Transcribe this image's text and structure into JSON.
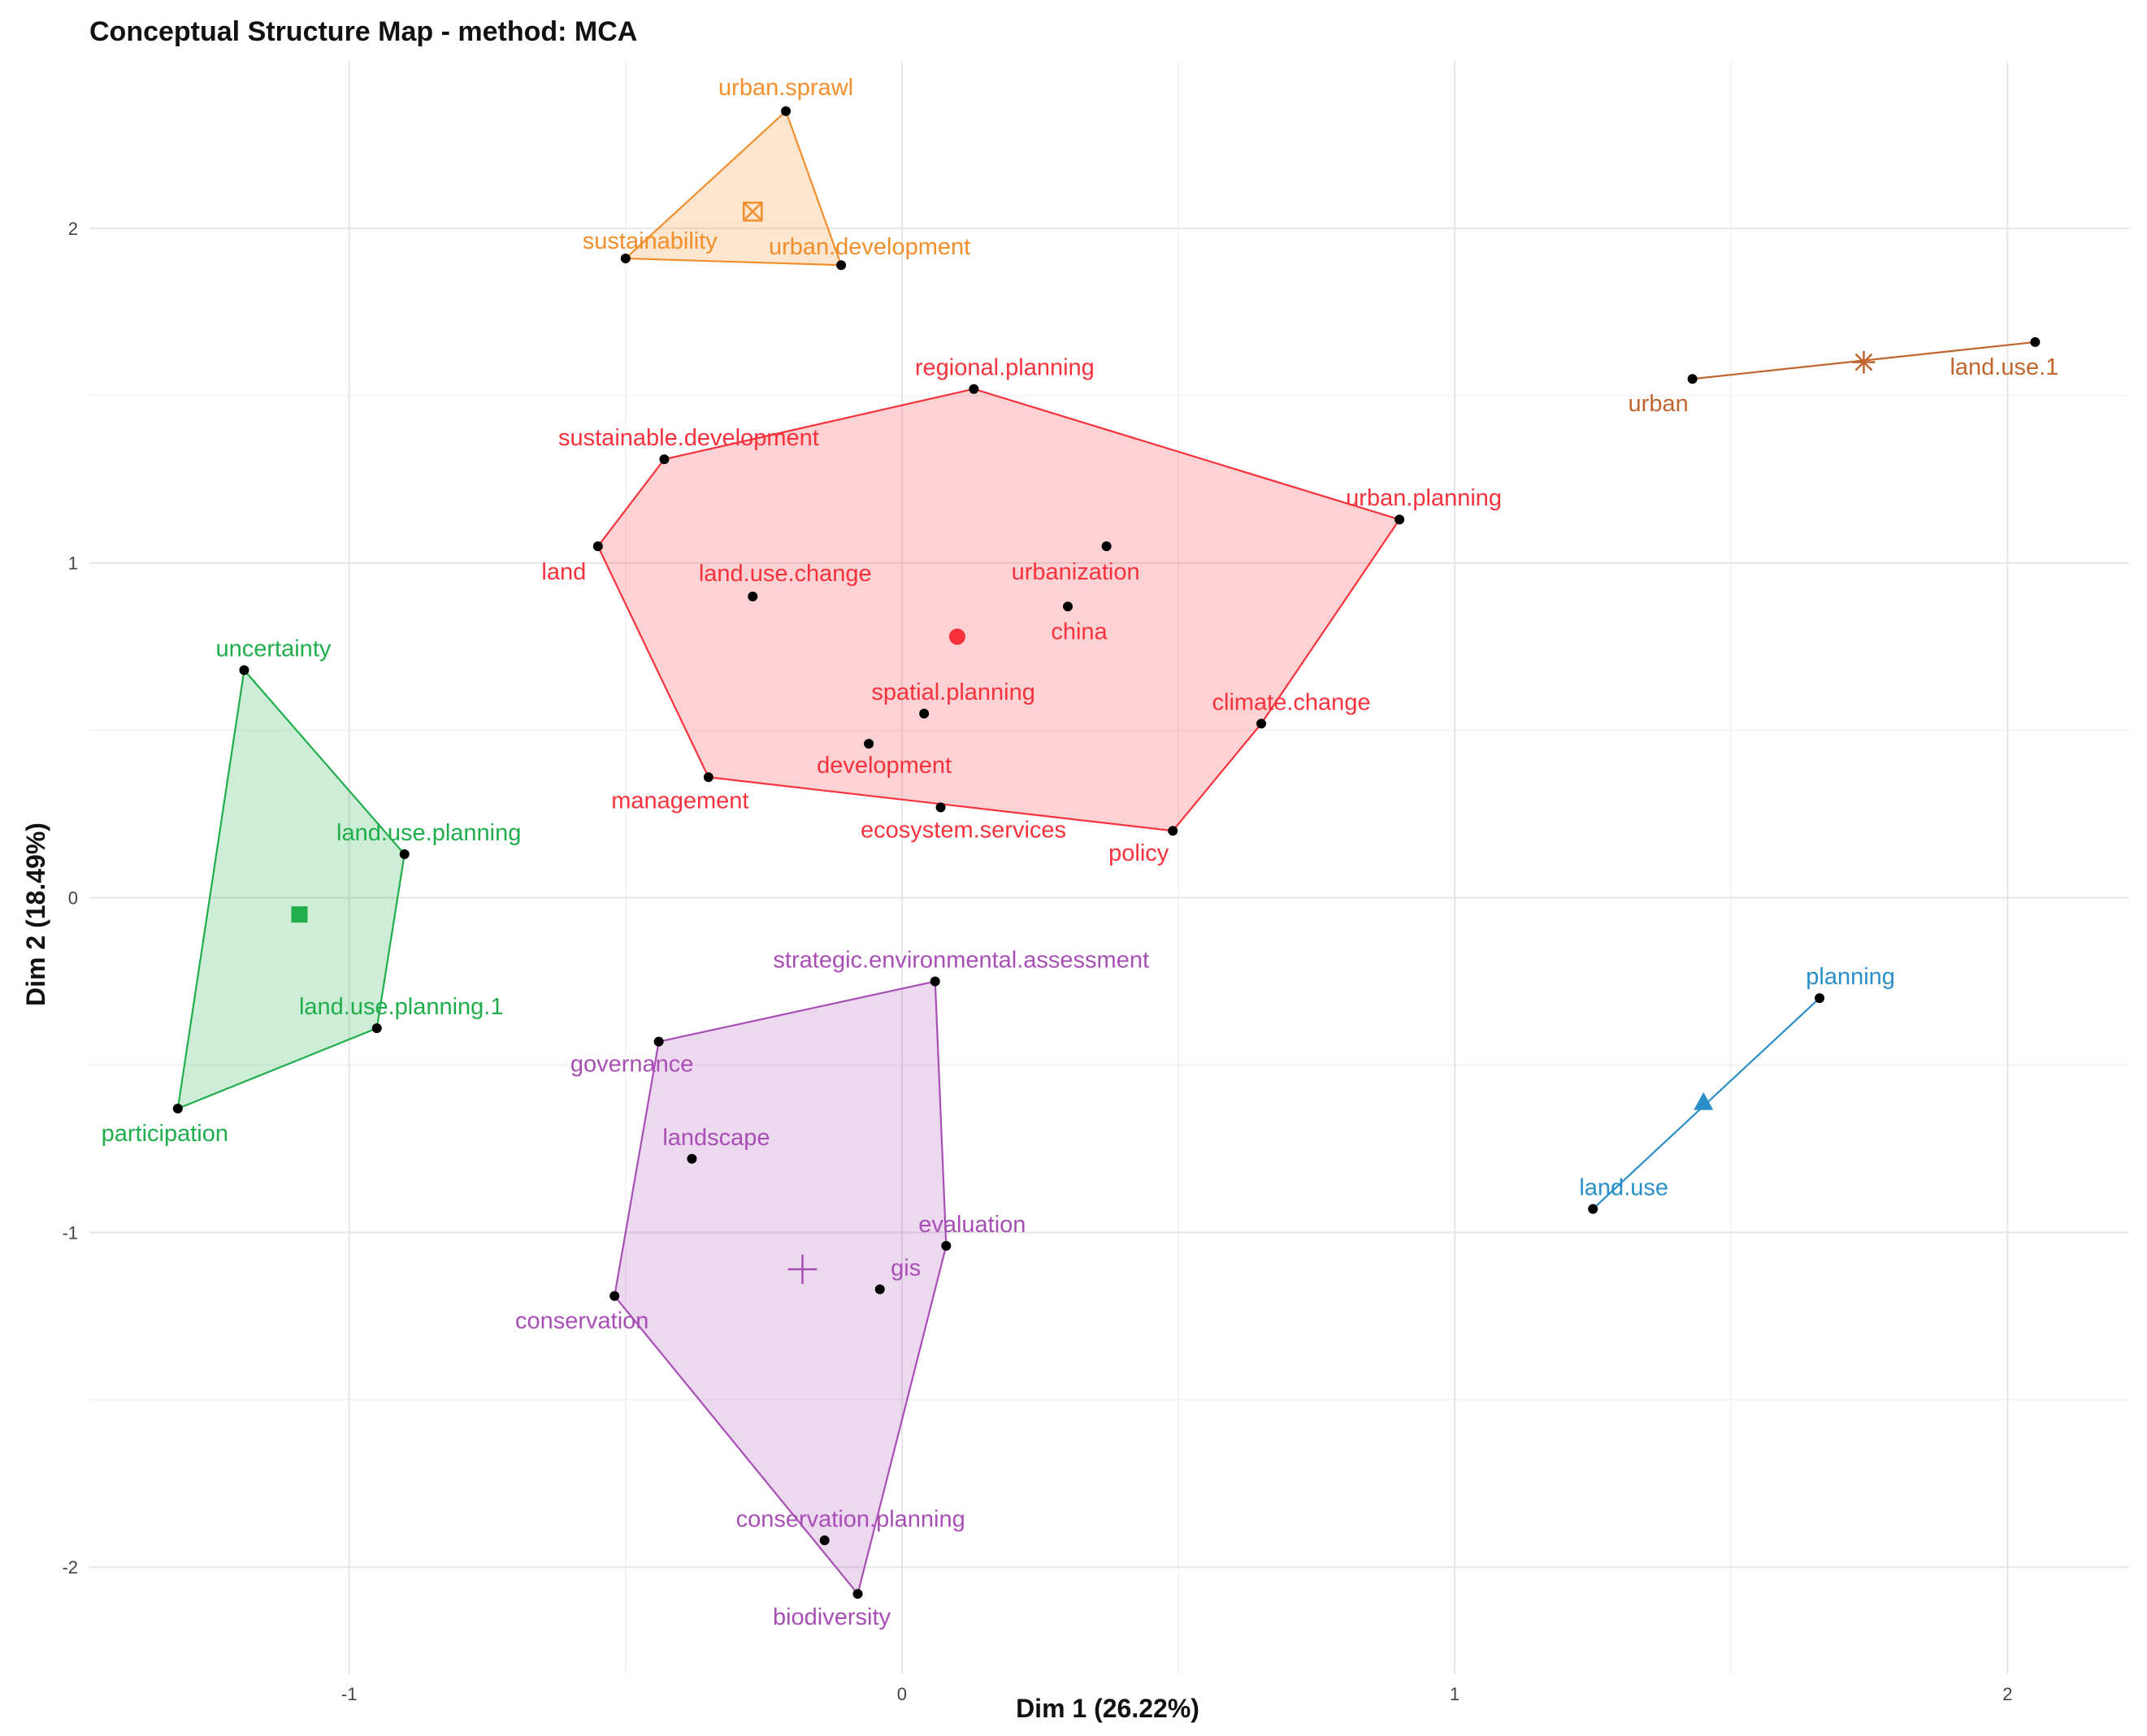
{
  "chart_data": {
    "type": "scatter",
    "title": "Conceptual Structure Map - method: MCA",
    "xlabel": "Dim 1 (26.22%)",
    "ylabel": "Dim 2 (18.49%)",
    "xlim": [
      -1.47,
      2.22
    ],
    "ylim": [
      -2.32,
      2.5
    ],
    "x_ticks": [
      -1,
      0,
      1,
      2
    ],
    "y_ticks": [
      -2,
      -1,
      0,
      1,
      2
    ],
    "grid": true,
    "clusters": [
      {
        "color": "#F28E2B",
        "centroid_shape": "square-cross",
        "centroid": [
          -0.27,
          2.05
        ],
        "hull": [
          [
            -0.5,
            1.91
          ],
          [
            -0.21,
            2.35
          ],
          [
            -0.11,
            1.89
          ]
        ],
        "points": [
          {
            "label": "urban.sprawl",
            "x": -0.21,
            "y": 2.35
          },
          {
            "label": "sustainability",
            "x": -0.5,
            "y": 1.91
          },
          {
            "label": "urban.development",
            "x": -0.11,
            "y": 1.89
          }
        ]
      },
      {
        "color": "#F8323C",
        "centroid_shape": "circle",
        "centroid": [
          0.1,
          0.78
        ],
        "hull": [
          [
            -0.55,
            1.05
          ],
          [
            -0.43,
            1.31
          ],
          [
            0.13,
            1.52
          ],
          [
            0.9,
            1.13
          ],
          [
            0.65,
            0.52
          ],
          [
            0.49,
            0.2
          ],
          [
            -0.35,
            0.36
          ]
        ],
        "points": [
          {
            "label": "regional.planning",
            "x": 0.13,
            "y": 1.52
          },
          {
            "label": "sustainable.development",
            "x": -0.43,
            "y": 1.31
          },
          {
            "label": "urban.planning",
            "x": 0.9,
            "y": 1.13
          },
          {
            "label": "land",
            "x": -0.55,
            "y": 1.05
          },
          {
            "label": "land.use.change",
            "x": -0.27,
            "y": 0.9
          },
          {
            "label": "urbanization",
            "x": 0.37,
            "y": 1.05
          },
          {
            "label": "china",
            "x": 0.3,
            "y": 0.87
          },
          {
            "label": "spatial.planning",
            "x": 0.04,
            "y": 0.55
          },
          {
            "label": "climate.change",
            "x": 0.65,
            "y": 0.52
          },
          {
            "label": "development",
            "x": -0.06,
            "y": 0.46
          },
          {
            "label": "management",
            "x": -0.35,
            "y": 0.36
          },
          {
            "label": "ecosystem.services",
            "x": 0.07,
            "y": 0.27
          },
          {
            "label": "policy",
            "x": 0.49,
            "y": 0.2
          }
        ]
      },
      {
        "color": "#C0652E",
        "centroid_shape": "asterisk",
        "centroid": [
          1.74,
          1.6
        ],
        "hull": [
          [
            1.43,
            1.55
          ],
          [
            2.05,
            1.66
          ]
        ],
        "points": [
          {
            "label": "urban",
            "x": 1.43,
            "y": 1.55
          },
          {
            "label": "land.use.1",
            "x": 2.05,
            "y": 1.66
          }
        ]
      },
      {
        "color": "#1FAE4B",
        "centroid_shape": "square",
        "centroid": [
          -1.09,
          -0.05
        ],
        "hull": [
          [
            -1.19,
            0.68
          ],
          [
            -0.9,
            0.13
          ],
          [
            -0.95,
            -0.39
          ],
          [
            -1.31,
            -0.63
          ]
        ],
        "points": [
          {
            "label": "uncertainty",
            "x": -1.19,
            "y": 0.68
          },
          {
            "label": "land.use.planning",
            "x": -0.9,
            "y": 0.13
          },
          {
            "label": "land.use.planning.1",
            "x": -0.95,
            "y": -0.39
          },
          {
            "label": "participation",
            "x": -1.31,
            "y": -0.63
          }
        ]
      },
      {
        "color": "#A84FB5",
        "centroid_shape": "plus",
        "centroid": [
          -0.18,
          -1.11
        ],
        "hull": [
          [
            -0.44,
            -0.43
          ],
          [
            0.06,
            -0.25
          ],
          [
            0.08,
            -1.04
          ],
          [
            -0.08,
            -2.08
          ],
          [
            -0.52,
            -1.19
          ]
        ],
        "points": [
          {
            "label": "strategic.environmental.assessment",
            "x": 0.06,
            "y": -0.25
          },
          {
            "label": "governance",
            "x": -0.44,
            "y": -0.43
          },
          {
            "label": "landscape",
            "x": -0.38,
            "y": -0.78
          },
          {
            "label": "evaluation",
            "x": 0.08,
            "y": -1.04
          },
          {
            "label": "gis",
            "x": -0.04,
            "y": -1.17
          },
          {
            "label": "conservation",
            "x": -0.52,
            "y": -1.19
          },
          {
            "label": "conservation.planning",
            "x": -0.14,
            "y": -1.92
          },
          {
            "label": "biodiversity",
            "x": -0.08,
            "y": -2.08
          }
        ]
      },
      {
        "color": "#2A8FC9",
        "centroid_shape": "triangle",
        "centroid": [
          1.45,
          -0.61
        ],
        "hull": [
          [
            1.66,
            -0.3
          ],
          [
            1.25,
            -0.93
          ]
        ],
        "points": [
          {
            "label": "planning",
            "x": 1.66,
            "y": -0.3
          },
          {
            "label": "land.use",
            "x": 1.25,
            "y": -0.93
          }
        ]
      }
    ]
  }
}
